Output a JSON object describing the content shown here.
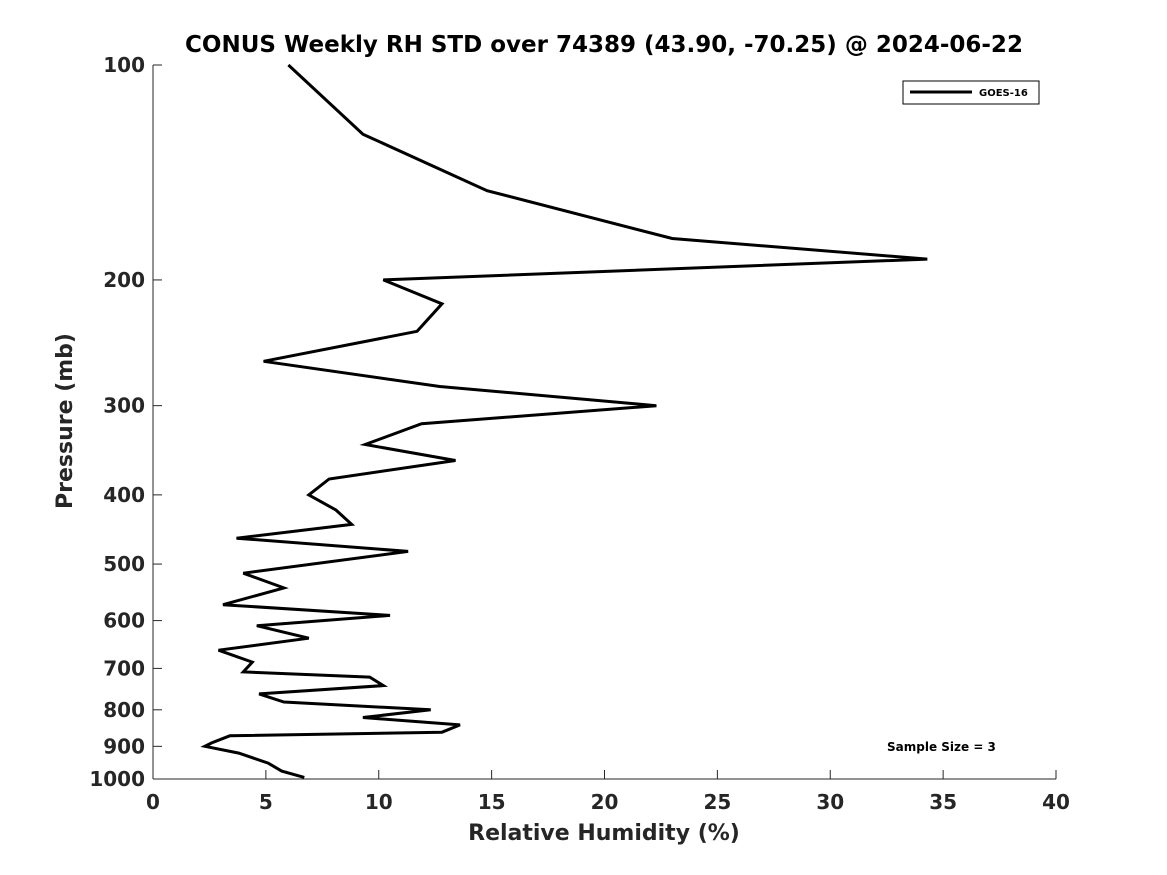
{
  "chart_data": {
    "type": "line",
    "title": "CONUS Weekly RH STD over 74389 (43.90, -70.25) @ 2024-06-22",
    "xlabel": "Relative Humidity (%)",
    "ylabel": "Pressure (mb)",
    "xlim": [
      0,
      40
    ],
    "ylim": [
      100,
      1000
    ],
    "y_scale": "log",
    "y_reversed": true,
    "x_ticks": [
      "0",
      "5",
      "10",
      "15",
      "20",
      "25",
      "30",
      "35",
      "40"
    ],
    "y_ticks": [
      "100",
      "200",
      "300",
      "400",
      "500",
      "600",
      "700",
      "800",
      "900",
      "1000"
    ],
    "grid": false,
    "legend": {
      "position": "top-right",
      "entries": [
        "GOES-16"
      ]
    },
    "annotation": "Sample Size = 3",
    "series": [
      {
        "name": "GOES-16",
        "color": "#000000",
        "points": [
          [
            6.0,
            100
          ],
          [
            9.3,
            125
          ],
          [
            14.8,
            150
          ],
          [
            23.0,
            175
          ],
          [
            34.3,
            187
          ],
          [
            10.2,
            200
          ],
          [
            12.8,
            216
          ],
          [
            11.7,
            236
          ],
          [
            4.9,
            260
          ],
          [
            12.7,
            282
          ],
          [
            22.3,
            300
          ],
          [
            11.9,
            318
          ],
          [
            9.4,
            340
          ],
          [
            13.4,
            358
          ],
          [
            7.8,
            380
          ],
          [
            6.9,
            400
          ],
          [
            8.1,
            420
          ],
          [
            8.8,
            440
          ],
          [
            3.7,
            460
          ],
          [
            11.3,
            480
          ],
          [
            4.0,
            515
          ],
          [
            5.8,
            540
          ],
          [
            3.1,
            570
          ],
          [
            10.5,
            590
          ],
          [
            4.6,
            610
          ],
          [
            6.9,
            635
          ],
          [
            2.9,
            660
          ],
          [
            4.4,
            686
          ],
          [
            4.0,
            708
          ],
          [
            9.6,
            720
          ],
          [
            10.2,
            740
          ],
          [
            4.7,
            760
          ],
          [
            5.8,
            780
          ],
          [
            12.3,
            800
          ],
          [
            9.3,
            820
          ],
          [
            13.6,
            840
          ],
          [
            12.8,
            860
          ],
          [
            3.4,
            870
          ],
          [
            2.6,
            890
          ],
          [
            2.3,
            900
          ],
          [
            3.8,
            920
          ],
          [
            5.1,
            950
          ],
          [
            5.7,
            975
          ],
          [
            6.7,
            995
          ]
        ]
      }
    ]
  }
}
